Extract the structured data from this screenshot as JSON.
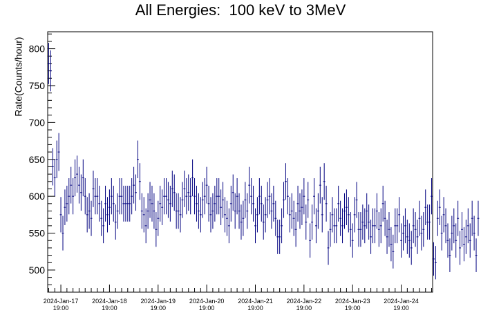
{
  "chart_data": {
    "type": "scatter",
    "title": "All Energies:  100 keV to 3MeV",
    "xlabel": "",
    "ylabel": "Rate(Counts/hour)",
    "x_unit": "hours since 2024-Jan-16 19:00",
    "xlim": [
      17.5,
      207.5
    ],
    "ylim": [
      470,
      823
    ],
    "y_ticks": [
      500,
      550,
      600,
      650,
      700,
      750,
      800
    ],
    "x_tick_labels": [
      {
        "x": 24,
        "date": "2024-Jan-17",
        "time": "19:00"
      },
      {
        "x": 48,
        "date": "2024-Jan-18",
        "time": "19:00"
      },
      {
        "x": 72,
        "date": "2024-Jan-19",
        "time": "19:00"
      },
      {
        "x": 96,
        "date": "2024-Jan-20",
        "time": "19:00"
      },
      {
        "x": 120,
        "date": "2024-Jan-21",
        "time": "19:00"
      },
      {
        "x": 144,
        "date": "2024-Jan-22",
        "time": "19:00"
      },
      {
        "x": 168,
        "date": "2024-Jan-23",
        "time": "19:00"
      },
      {
        "x": 192,
        "date": "2024-Jan-24",
        "time": "19:00"
      }
    ],
    "grid": false,
    "marker_color": "#00007f",
    "series": [
      {
        "name": "",
        "bin_width_hours": 1,
        "x_start": 18,
        "values": [
          780,
          770,
          640,
          625,
          650,
          660,
          575,
          550,
          585,
          590,
          600,
          615,
          600,
          625,
          630,
          615,
          605,
          625,
          600,
          575,
          580,
          570,
          610,
          600,
          600,
          590,
          570,
          560,
          590,
          575,
          585,
          600,
          590,
          565,
          580,
          600,
          600,
          590,
          590,
          590,
          590,
          600,
          615,
          605,
          650,
          620,
          580,
          575,
          560,
          580,
          595,
          590,
          580,
          555,
          570,
          590,
          585,
          600,
          600,
          595,
          590,
          610,
          605,
          580,
          580,
          575,
          595,
          610,
          600,
          605,
          600,
          625,
          600,
          590,
          580,
          575,
          595,
          600,
          615,
          590,
          575,
          580,
          590,
          600,
          600,
          585,
          595,
          575,
          570,
          560,
          590,
          605,
          580,
          600,
          580,
          565,
          570,
          595,
          580,
          615,
          600,
          590,
          560,
          575,
          600,
          590,
          565,
          575,
          595,
          600,
          580,
          590,
          570,
          545,
          545,
          560,
          595,
          620,
          600,
          575,
          580,
          570,
          555,
          590,
          580,
          585,
          600,
          565,
          595,
          540,
          565,
          600,
          560,
          580,
          615,
          575,
          620,
          590,
          530,
          555,
          575,
          560,
          560,
          590,
          570,
          560,
          580,
          585,
          575,
          555,
          540,
          575,
          595,
          555,
          555,
          565,
          560,
          580,
          565,
          545,
          560,
          560,
          580,
          555,
          560,
          590,
          570,
          545,
          555,
          535,
          525,
          560,
          560,
          575,
          540,
          550,
          560,
          545,
          540,
          530,
          560,
          555,
          545,
          570,
          550,
          555,
          585,
          565,
          565,
          600,
          515,
          510,
          570,
          585,
          550,
          575,
          560,
          540,
          520,
          550,
          560,
          540,
          570,
          530,
          555,
          535,
          545,
          560,
          540,
          570,
          550,
          520,
          570
        ]
      }
    ]
  }
}
